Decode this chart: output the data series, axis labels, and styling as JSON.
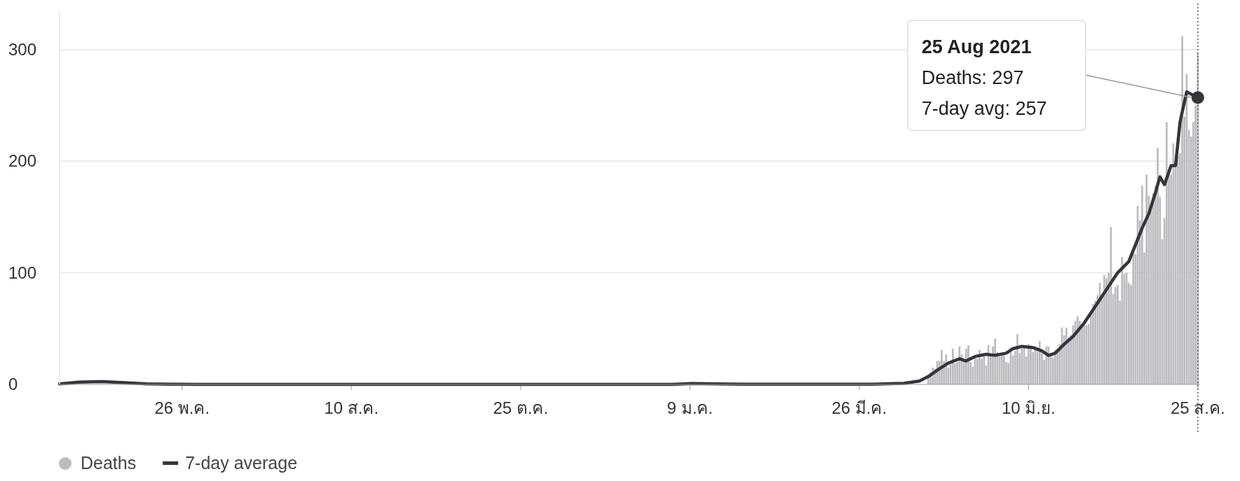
{
  "chart_data": {
    "type": "bar",
    "xlim": [
      "2020-04-01",
      "2021-08-26"
    ],
    "ylim": [
      0,
      335
    ],
    "yticks": [
      0,
      100,
      200,
      300
    ],
    "xticks": [
      {
        "value": "2020-05-26",
        "label": "26 พ.ค."
      },
      {
        "value": "2020-08-10",
        "label": "10 ส.ค."
      },
      {
        "value": "2020-10-25",
        "label": "25 ต.ค."
      },
      {
        "value": "2021-01-09",
        "label": "9 ม.ค."
      },
      {
        "value": "2021-03-26",
        "label": "26 มี.ค."
      },
      {
        "value": "2021-06-10",
        "label": "10 มิ.ย."
      },
      {
        "value": "2021-08-25",
        "label": "25 ส.ค."
      }
    ],
    "grid": "y",
    "legend": "bottom left",
    "series": [
      {
        "name": "Deaths",
        "color": "#bbbcc0",
        "x": [
          "2021-04-26",
          "2021-04-27",
          "2021-04-28",
          "2021-04-29",
          "2021-04-30",
          "2021-05-01",
          "2021-05-02",
          "2021-05-03",
          "2021-05-04",
          "2021-05-05",
          "2021-05-06",
          "2021-05-07",
          "2021-05-08",
          "2021-05-09",
          "2021-05-10",
          "2021-05-11",
          "2021-05-12",
          "2021-05-13",
          "2021-05-14",
          "2021-05-15",
          "2021-05-16",
          "2021-05-17",
          "2021-05-18",
          "2021-05-19",
          "2021-05-20",
          "2021-05-21",
          "2021-05-22",
          "2021-05-23",
          "2021-05-24",
          "2021-05-25",
          "2021-05-26",
          "2021-05-27",
          "2021-05-28",
          "2021-05-29",
          "2021-05-30",
          "2021-05-31",
          "2021-06-01",
          "2021-06-02",
          "2021-06-03",
          "2021-06-04",
          "2021-06-05",
          "2021-06-06",
          "2021-06-07",
          "2021-06-08",
          "2021-06-09",
          "2021-06-10",
          "2021-06-11",
          "2021-06-12",
          "2021-06-13",
          "2021-06-14",
          "2021-06-15",
          "2021-06-16",
          "2021-06-17",
          "2021-06-18",
          "2021-06-19",
          "2021-06-20",
          "2021-06-21",
          "2021-06-22",
          "2021-06-23",
          "2021-06-24",
          "2021-06-25",
          "2021-06-26",
          "2021-06-27",
          "2021-06-28",
          "2021-06-29",
          "2021-06-30",
          "2021-07-01",
          "2021-07-02",
          "2021-07-03",
          "2021-07-04",
          "2021-07-05",
          "2021-07-06",
          "2021-07-07",
          "2021-07-08",
          "2021-07-09",
          "2021-07-10",
          "2021-07-11",
          "2021-07-12",
          "2021-07-13",
          "2021-07-14",
          "2021-07-15",
          "2021-07-16",
          "2021-07-17",
          "2021-07-18",
          "2021-07-19",
          "2021-07-20",
          "2021-07-21",
          "2021-07-22",
          "2021-07-23",
          "2021-07-24",
          "2021-07-25",
          "2021-07-26",
          "2021-07-27",
          "2021-07-28",
          "2021-07-29",
          "2021-07-30",
          "2021-07-31",
          "2021-08-01",
          "2021-08-02",
          "2021-08-03",
          "2021-08-04",
          "2021-08-05",
          "2021-08-06",
          "2021-08-07",
          "2021-08-08",
          "2021-08-09",
          "2021-08-10",
          "2021-08-11",
          "2021-08-12",
          "2021-08-13",
          "2021-08-14",
          "2021-08-15",
          "2021-08-16",
          "2021-08-17",
          "2021-08-18",
          "2021-08-19",
          "2021-08-20",
          "2021-08-21",
          "2021-08-22",
          "2021-08-23",
          "2021-08-24",
          "2021-08-25"
        ],
        "values": [
          7,
          11,
          15,
          14,
          21,
          21,
          31,
          21,
          27,
          15,
          18,
          32,
          19,
          20,
          34,
          27,
          22,
          32,
          35,
          20,
          16,
          25,
          23,
          31,
          23,
          28,
          17,
          35,
          26,
          34,
          41,
          29,
          25,
          26,
          26,
          20,
          19,
          30,
          26,
          30,
          45,
          28,
          32,
          33,
          25,
          36,
          35,
          29,
          32,
          31,
          39,
          29,
          22,
          34,
          34,
          28,
          24,
          31,
          32,
          36,
          51,
          44,
          51,
          42,
          44,
          53,
          57,
          61,
          57,
          54,
          57,
          53,
          54,
          63,
          72,
          75,
          80,
          91,
          81,
          98,
          95,
          100,
          141,
          81,
          87,
          89,
          75,
          114,
          99,
          100,
          91,
          89,
          118,
          117,
          160,
          147,
          178,
          118,
          188,
          169,
          160,
          171,
          178,
          212,
          168,
          130,
          149,
          235,
          191,
          188,
          216,
          195,
          205,
          207,
          312,
          240,
          278,
          228,
          222,
          235,
          250,
          297
        ]
      },
      {
        "name": "7-day average",
        "type": "line",
        "color": "#33363b",
        "line_style": "solid",
        "marker": "none",
        "x": [
          "2020-04-01",
          "2020-04-10",
          "2020-04-20",
          "2020-04-30",
          "2020-05-10",
          "2020-05-20",
          "2020-06-01",
          "2020-07-01",
          "2020-08-01",
          "2020-09-01",
          "2020-10-01",
          "2020-11-01",
          "2020-12-01",
          "2021-01-01",
          "2021-01-10",
          "2021-01-20",
          "2021-02-01",
          "2021-03-01",
          "2021-04-01",
          "2021-04-15",
          "2021-04-22",
          "2021-04-26",
          "2021-05-01",
          "2021-05-05",
          "2021-05-10",
          "2021-05-13",
          "2021-05-17",
          "2021-05-22",
          "2021-05-26",
          "2021-05-31",
          "2021-06-03",
          "2021-06-07",
          "2021-06-12",
          "2021-06-16",
          "2021-06-19",
          "2021-06-22",
          "2021-06-26",
          "2021-06-30",
          "2021-07-05",
          "2021-07-10",
          "2021-07-15",
          "2021-07-20",
          "2021-07-25",
          "2021-07-31",
          "2021-08-03",
          "2021-08-06",
          "2021-08-08",
          "2021-08-10",
          "2021-08-13",
          "2021-08-15",
          "2021-08-17",
          "2021-08-20",
          "2021-08-22",
          "2021-08-25"
        ],
        "values": [
          0.5,
          2,
          2.5,
          1.5,
          0.5,
          0.2,
          0,
          0,
          0,
          0,
          0,
          0,
          0,
          0,
          0.8,
          0.5,
          0.2,
          0.1,
          0.2,
          1,
          3,
          7,
          14,
          19,
          23,
          21,
          25,
          27,
          26,
          28,
          32,
          34,
          33,
          30,
          26,
          28,
          36,
          43,
          55,
          70,
          85,
          100,
          110,
          140,
          153,
          172,
          186,
          179,
          196,
          196,
          235,
          262,
          260,
          257
        ]
      }
    ],
    "ref_lines": [
      {
        "axis": "x",
        "value": "2021-08-25",
        "line_style": "dotted",
        "color": "#555555"
      }
    ],
    "annotations": [
      "25 Aug 2021",
      "Deaths: 297",
      "7-day avg: 257"
    ]
  }
}
